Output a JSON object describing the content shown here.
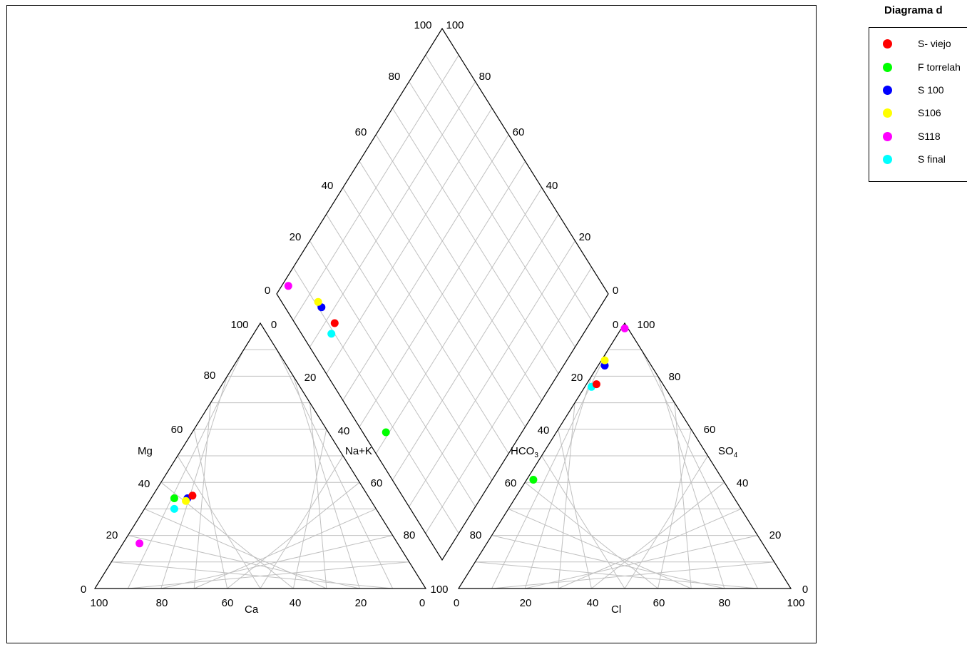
{
  "legend": {
    "title": "Diagrama d",
    "items": [
      {
        "label": "S- viejo",
        "color": "#ff0000"
      },
      {
        "label": "F torrelah",
        "color": "#00ff00"
      },
      {
        "label": "S 100",
        "color": "#0000ff"
      },
      {
        "label": "S106",
        "color": "#ffff00"
      },
      {
        "label": "S118",
        "color": "#ff00ff"
      },
      {
        "label": "S final",
        "color": "#00ffff"
      }
    ]
  },
  "chart_data": {
    "type": "scatter",
    "subtype": "piper-trilinear",
    "grid": true,
    "grid_color": "#c0c0c0",
    "scale": [
      0,
      100
    ],
    "tick_step": 20,
    "labels": {
      "mg": "Mg",
      "ca": "Ca",
      "nak": "Na+K",
      "hco3_main": "HCO",
      "hco3_sub": "3",
      "so4_main": "SO",
      "so4_sub": "4",
      "cl": "Cl"
    },
    "tick_labels": [
      "0",
      "20",
      "40",
      "60",
      "80",
      "100"
    ],
    "cation_triangle": {
      "axes": [
        "Ca",
        "Mg",
        "Na+K"
      ],
      "series": [
        {
          "name": "S- viejo",
          "color": "#ff0000",
          "ca": 53,
          "mg": 35,
          "nak": 12
        },
        {
          "name": "F torrelah",
          "color": "#00ff00",
          "ca": 59,
          "mg": 34,
          "nak": 7
        },
        {
          "name": "S 100",
          "color": "#0000ff",
          "ca": 55,
          "mg": 34,
          "nak": 11
        },
        {
          "name": "S106",
          "color": "#ffff00",
          "ca": 56,
          "mg": 33,
          "nak": 11
        },
        {
          "name": "S118",
          "color": "#ff00ff",
          "ca": 78,
          "mg": 17,
          "nak": 5
        },
        {
          "name": "S final",
          "color": "#00ffff",
          "ca": 61,
          "mg": 30,
          "nak": 9
        }
      ]
    },
    "anion_triangle": {
      "axes": [
        "HCO3",
        "SO4",
        "Cl"
      ],
      "series": [
        {
          "name": "S- viejo",
          "color": "#ff0000",
          "hco3": 20,
          "so4": 77,
          "cl": 3
        },
        {
          "name": "F torrelah",
          "color": "#00ff00",
          "hco3": 57,
          "so4": 41,
          "cl": 2
        },
        {
          "name": "S 100",
          "color": "#0000ff",
          "hco3": 14,
          "so4": 84,
          "cl": 2
        },
        {
          "name": "S106",
          "color": "#ffff00",
          "hco3": 13,
          "so4": 86,
          "cl": 1
        },
        {
          "name": "S118",
          "color": "#ff00ff",
          "hco3": 1,
          "so4": 98,
          "cl": 1
        },
        {
          "name": "S final",
          "color": "#00ffff",
          "hco3": 22,
          "so4": 76,
          "cl": 2
        }
      ]
    }
  }
}
